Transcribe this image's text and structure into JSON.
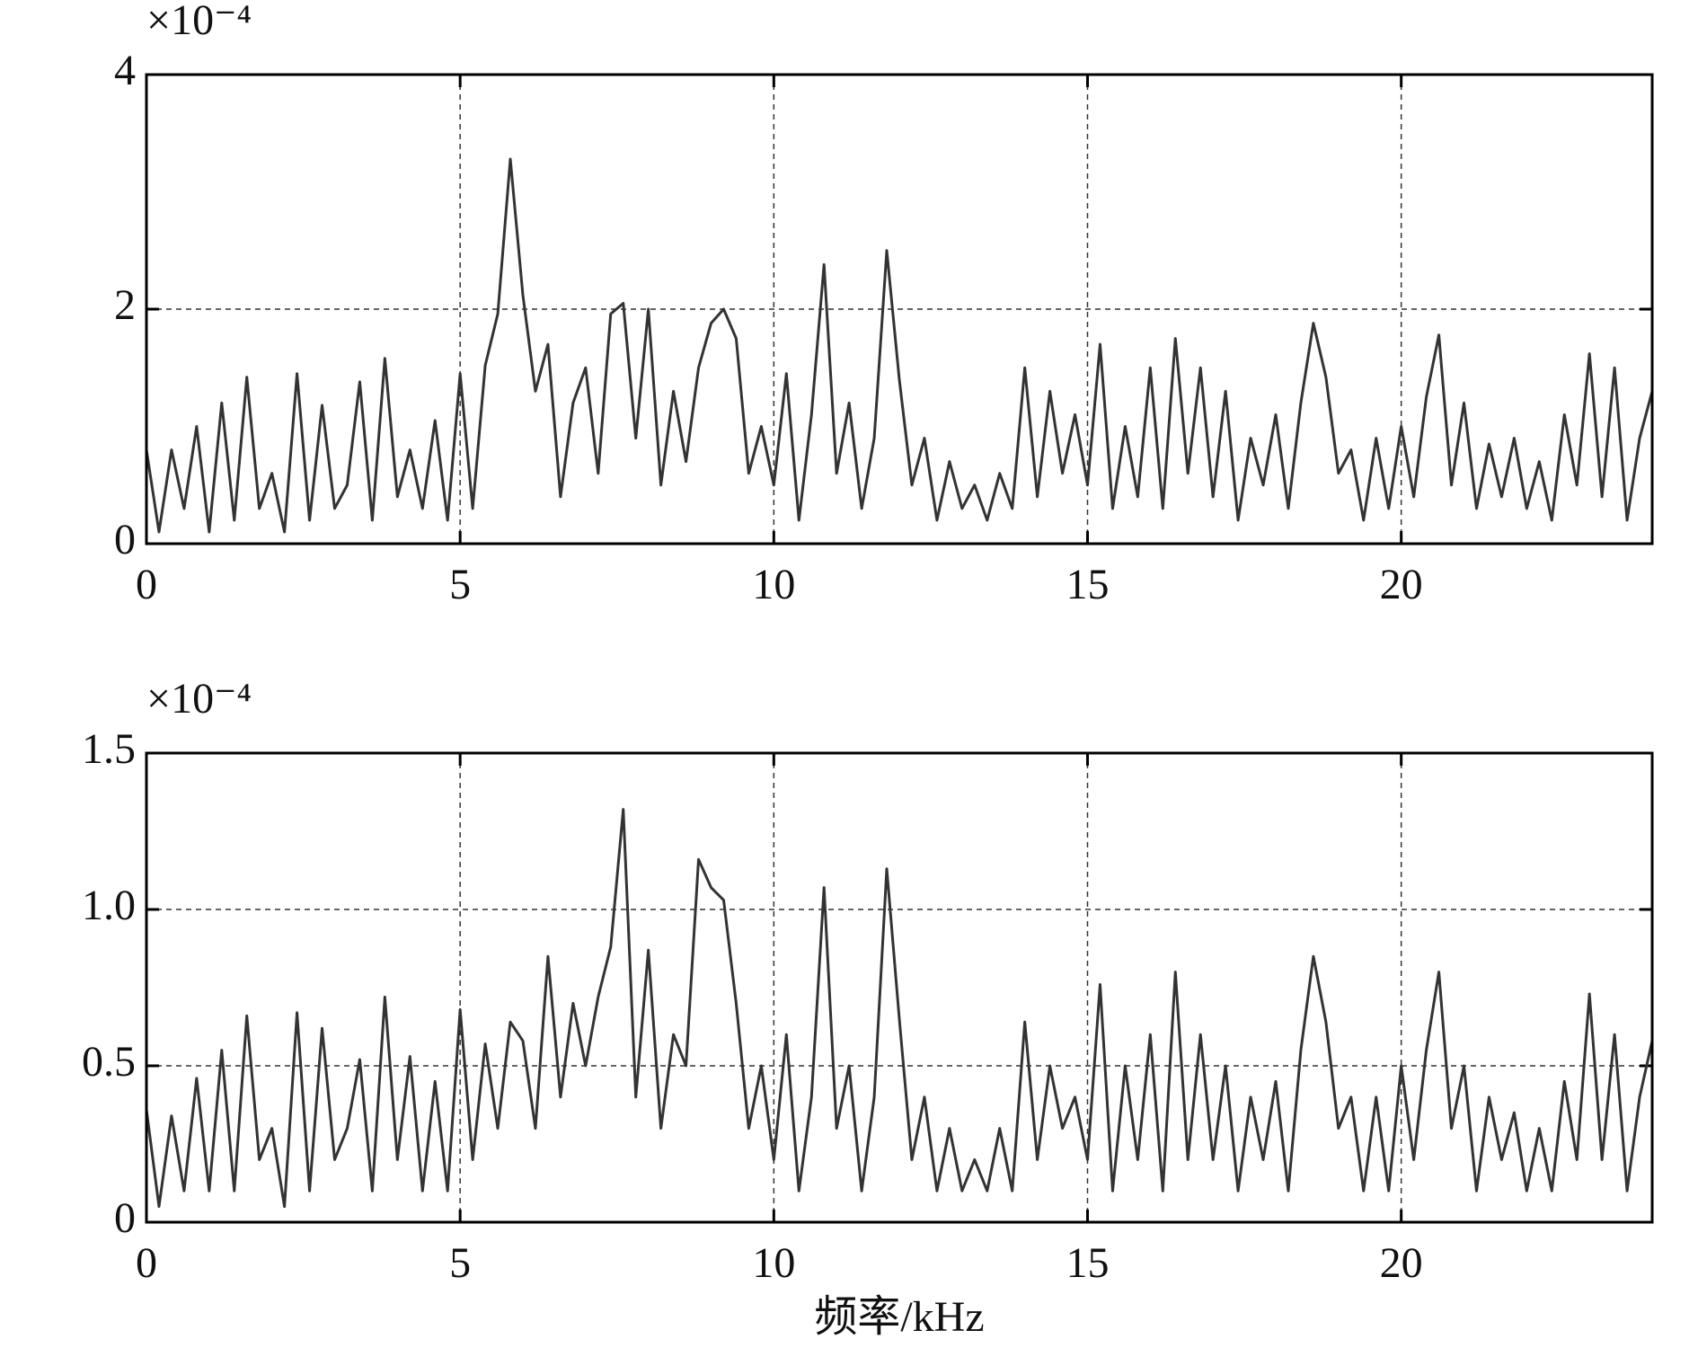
{
  "chart_data": [
    {
      "type": "line",
      "axis_scale_label": "×10⁻⁴",
      "color": "#333333",
      "grid": true,
      "xlim": [
        0,
        24
      ],
      "xticks": [
        0,
        5,
        10,
        15,
        20
      ],
      "ylim": [
        0,
        4
      ],
      "yticks": [
        0,
        2,
        4
      ],
      "x": [
        0,
        0.2,
        0.4,
        0.6,
        0.8,
        1,
        1.2,
        1.4,
        1.6,
        1.8,
        2,
        2.2,
        2.4,
        2.6,
        2.8,
        3,
        3.2,
        3.4,
        3.6,
        3.8,
        4,
        4.2,
        4.4,
        4.6,
        4.8,
        5,
        5.2,
        5.4,
        5.6,
        5.8,
        6,
        6.2,
        6.4,
        6.6,
        6.8,
        7,
        7.2,
        7.4,
        7.6,
        7.8,
        8,
        8.2,
        8.4,
        8.6,
        8.8,
        9,
        9.2,
        9.4,
        9.6,
        9.8,
        10,
        10.2,
        10.4,
        10.6,
        10.8,
        11,
        11.2,
        11.4,
        11.6,
        11.8,
        12,
        12.2,
        12.4,
        12.6,
        12.8,
        13,
        13.2,
        13.4,
        13.6,
        13.8,
        14,
        14.2,
        14.4,
        14.6,
        14.8,
        15,
        15.2,
        15.4,
        15.6,
        15.8,
        16,
        16.2,
        16.4,
        16.6,
        16.8,
        17,
        17.2,
        17.4,
        17.6,
        17.8,
        18,
        18.2,
        18.4,
        18.6,
        18.8,
        19,
        19.2,
        19.4,
        19.6,
        19.8,
        20,
        20.2,
        20.4,
        20.6,
        20.8,
        21,
        21.2,
        21.4,
        21.6,
        21.8,
        22,
        22.2,
        22.4,
        22.6,
        22.8,
        23,
        23.2,
        23.4,
        23.6,
        23.8,
        24
      ],
      "values": [
        0.8,
        0.1,
        0.8,
        0.3,
        1.0,
        0.1,
        1.2,
        0.2,
        1.42,
        0.3,
        0.6,
        0.1,
        1.45,
        0.2,
        1.18,
        0.3,
        0.5,
        1.38,
        0.2,
        1.58,
        0.4,
        0.8,
        0.3,
        1.05,
        0.2,
        1.45,
        0.3,
        1.52,
        1.96,
        3.28,
        2.12,
        1.3,
        1.7,
        0.4,
        1.2,
        1.5,
        0.6,
        1.96,
        2.05,
        0.9,
        2.0,
        0.5,
        1.3,
        0.7,
        1.5,
        1.88,
        2.0,
        1.75,
        0.6,
        1.0,
        0.5,
        1.45,
        0.2,
        1.1,
        2.38,
        0.6,
        1.2,
        0.3,
        0.9,
        2.5,
        1.4,
        0.5,
        0.9,
        0.2,
        0.7,
        0.3,
        0.5,
        0.2,
        0.6,
        0.3,
        1.5,
        0.4,
        1.3,
        0.6,
        1.1,
        0.5,
        1.7,
        0.3,
        1.0,
        0.4,
        1.5,
        0.3,
        1.75,
        0.6,
        1.5,
        0.4,
        1.3,
        0.2,
        0.9,
        0.5,
        1.1,
        0.3,
        1.2,
        1.88,
        1.42,
        0.6,
        0.8,
        0.2,
        0.9,
        0.3,
        1.0,
        0.4,
        1.25,
        1.78,
        0.5,
        1.2,
        0.3,
        0.85,
        0.4,
        0.9,
        0.3,
        0.7,
        0.2,
        1.1,
        0.5,
        1.62,
        0.4,
        1.5,
        0.2,
        0.9,
        1.3
      ]
    },
    {
      "type": "line",
      "axis_scale_label": "×10⁻⁴",
      "color": "#333333",
      "grid": true,
      "xlabel": "频率/kHz",
      "xlim": [
        0,
        24
      ],
      "xticks": [
        0,
        5,
        10,
        15,
        20
      ],
      "ylim": [
        0,
        1.5
      ],
      "yticks": [
        0,
        0.5,
        {
          "value": 1.0,
          "label": "1.0"
        },
        1.5
      ],
      "x": [
        0,
        0.2,
        0.4,
        0.6,
        0.8,
        1,
        1.2,
        1.4,
        1.6,
        1.8,
        2,
        2.2,
        2.4,
        2.6,
        2.8,
        3,
        3.2,
        3.4,
        3.6,
        3.8,
        4,
        4.2,
        4.4,
        4.6,
        4.8,
        5,
        5.2,
        5.4,
        5.6,
        5.8,
        6,
        6.2,
        6.4,
        6.6,
        6.8,
        7,
        7.2,
        7.4,
        7.6,
        7.8,
        8,
        8.2,
        8.4,
        8.6,
        8.8,
        9,
        9.2,
        9.4,
        9.6,
        9.8,
        10,
        10.2,
        10.4,
        10.6,
        10.8,
        11,
        11.2,
        11.4,
        11.6,
        11.8,
        12,
        12.2,
        12.4,
        12.6,
        12.8,
        13,
        13.2,
        13.4,
        13.6,
        13.8,
        14,
        14.2,
        14.4,
        14.6,
        14.8,
        15,
        15.2,
        15.4,
        15.6,
        15.8,
        16,
        16.2,
        16.4,
        16.6,
        16.8,
        17,
        17.2,
        17.4,
        17.6,
        17.8,
        18,
        18.2,
        18.4,
        18.6,
        18.8,
        19,
        19.2,
        19.4,
        19.6,
        19.8,
        20,
        20.2,
        20.4,
        20.6,
        20.8,
        21,
        21.2,
        21.4,
        21.6,
        21.8,
        22,
        22.2,
        22.4,
        22.6,
        22.8,
        23,
        23.2,
        23.4,
        23.6,
        23.8,
        24
      ],
      "values": [
        0.36,
        0.05,
        0.34,
        0.1,
        0.46,
        0.1,
        0.55,
        0.1,
        0.66,
        0.2,
        0.3,
        0.05,
        0.67,
        0.1,
        0.62,
        0.2,
        0.3,
        0.52,
        0.1,
        0.72,
        0.2,
        0.53,
        0.1,
        0.45,
        0.1,
        0.68,
        0.2,
        0.57,
        0.3,
        0.64,
        0.58,
        0.3,
        0.85,
        0.4,
        0.7,
        0.5,
        0.72,
        0.88,
        1.32,
        0.4,
        0.87,
        0.3,
        0.6,
        0.5,
        1.16,
        1.07,
        1.03,
        0.7,
        0.3,
        0.5,
        0.2,
        0.6,
        0.1,
        0.4,
        1.07,
        0.3,
        0.5,
        0.1,
        0.4,
        1.13,
        0.65,
        0.2,
        0.4,
        0.1,
        0.3,
        0.1,
        0.2,
        0.1,
        0.3,
        0.1,
        0.64,
        0.2,
        0.5,
        0.3,
        0.4,
        0.2,
        0.76,
        0.1,
        0.5,
        0.2,
        0.6,
        0.1,
        0.8,
        0.2,
        0.6,
        0.2,
        0.5,
        0.1,
        0.4,
        0.2,
        0.45,
        0.1,
        0.55,
        0.85,
        0.64,
        0.3,
        0.4,
        0.1,
        0.4,
        0.1,
        0.5,
        0.2,
        0.55,
        0.8,
        0.3,
        0.5,
        0.1,
        0.4,
        0.2,
        0.35,
        0.1,
        0.3,
        0.1,
        0.45,
        0.2,
        0.73,
        0.2,
        0.6,
        0.1,
        0.4,
        0.58
      ]
    }
  ]
}
